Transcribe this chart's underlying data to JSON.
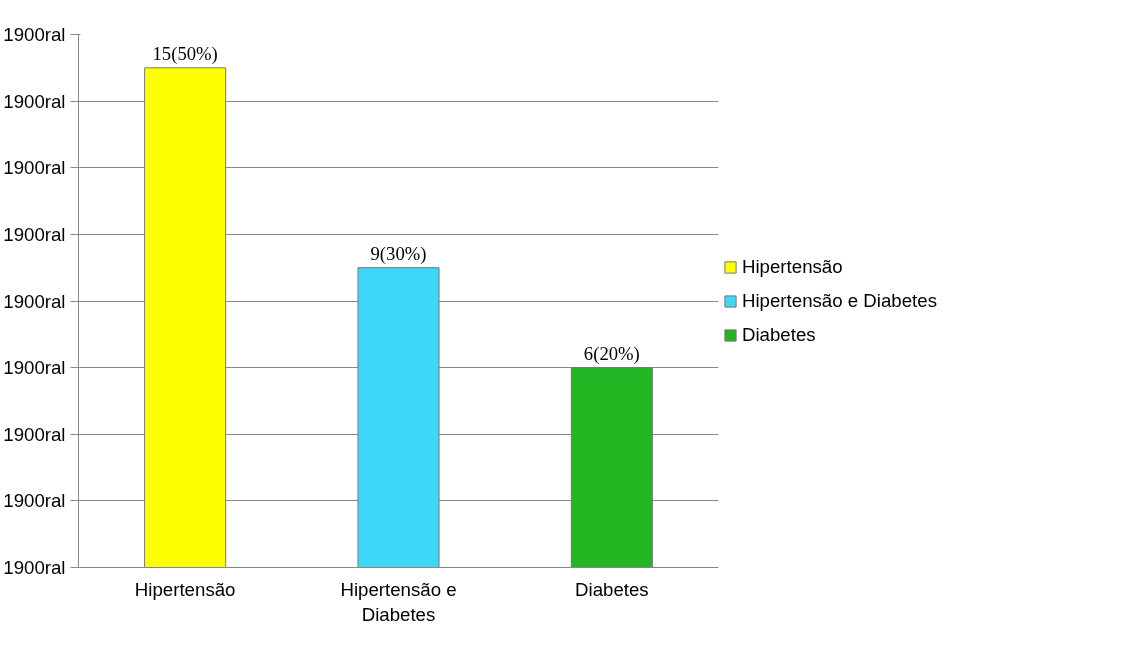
{
  "chart_data": {
    "type": "bar",
    "categories": [
      "Hipertensão",
      "Hipertensão e Diabetes",
      "Diabetes"
    ],
    "series": [
      {
        "name": "Hipertensão",
        "color": "#ffff00",
        "values": [
          15,
          null,
          null
        ],
        "value_labels": [
          "15(50%)",
          null,
          null
        ]
      },
      {
        "name": "Hipertensão e Diabetes",
        "color": "#3dd8f8",
        "values": [
          null,
          9,
          null
        ],
        "value_labels": [
          null,
          "9(30%)",
          null
        ]
      },
      {
        "name": "Diabetes",
        "color": "#22b722",
        "values": [
          null,
          null,
          6
        ],
        "value_labels": [
          null,
          null,
          "6(20%)"
        ]
      }
    ],
    "ylim": [
      0,
      16
    ],
    "annotations": [
      "1900ral",
      "1900ral",
      "1900ral",
      "1900ral",
      "1900ral",
      "1900ral",
      "1900ral",
      "1900ral",
      "1900ral"
    ],
    "grid": "y",
    "legend": "right"
  }
}
